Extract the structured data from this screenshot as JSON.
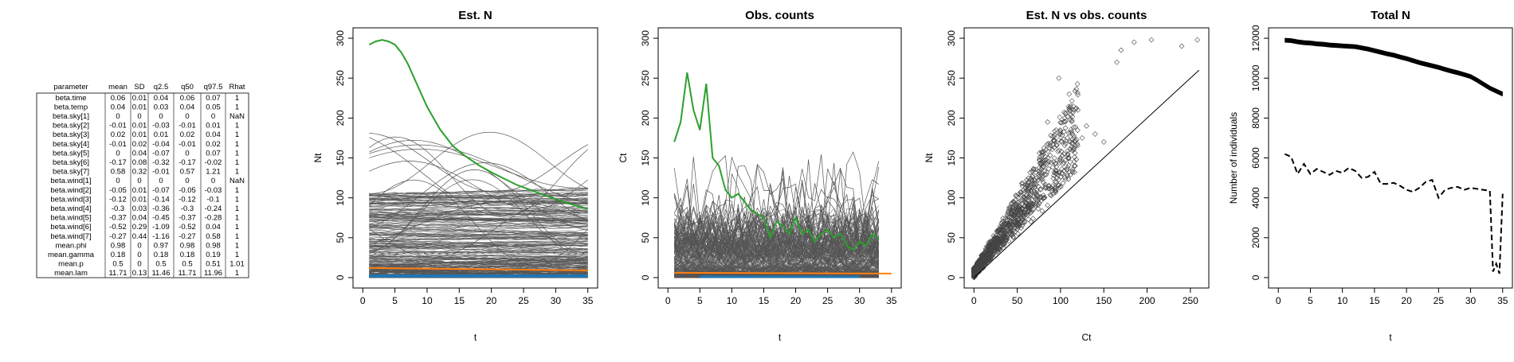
{
  "table": {
    "headers": [
      "parameter",
      "mean",
      "SD",
      "q2.5",
      "q50",
      "q97.5",
      "Rhat"
    ],
    "rows": [
      [
        "beta.time",
        "0.06",
        "0.01",
        "0.04",
        "0.06",
        "0.07",
        "1"
      ],
      [
        "beta.temp",
        "0.04",
        "0.01",
        "0.03",
        "0.04",
        "0.05",
        "1"
      ],
      [
        "beta.sky[1]",
        "0",
        "0",
        "0",
        "0",
        "0",
        "NaN"
      ],
      [
        "beta.sky[2]",
        "-0.01",
        "0.01",
        "-0.03",
        "-0.01",
        "0.01",
        "1"
      ],
      [
        "beta.sky[3]",
        "0.02",
        "0.01",
        "0.01",
        "0.02",
        "0.04",
        "1"
      ],
      [
        "beta.sky[4]",
        "-0.01",
        "0.02",
        "-0.04",
        "-0.01",
        "0.02",
        "1"
      ],
      [
        "beta.sky[5]",
        "0",
        "0.04",
        "-0.07",
        "0",
        "0.07",
        "1"
      ],
      [
        "beta.sky[6]",
        "-0.17",
        "0.08",
        "-0.32",
        "-0.17",
        "-0.02",
        "1"
      ],
      [
        "beta.sky[7]",
        "0.58",
        "0.32",
        "-0.01",
        "0.57",
        "1.21",
        "1"
      ],
      [
        "beta.wind[1]",
        "0",
        "0",
        "0",
        "0",
        "0",
        "NaN"
      ],
      [
        "beta.wind[2]",
        "-0.05",
        "0.01",
        "-0.07",
        "-0.05",
        "-0.03",
        "1"
      ],
      [
        "beta.wind[3]",
        "-0.12",
        "0.01",
        "-0.14",
        "-0.12",
        "-0.1",
        "1"
      ],
      [
        "beta.wind[4]",
        "-0.3",
        "0.03",
        "-0.36",
        "-0.3",
        "-0.24",
        "1"
      ],
      [
        "beta.wind[5]",
        "-0.37",
        "0.04",
        "-0.45",
        "-0.37",
        "-0.28",
        "1"
      ],
      [
        "beta.wind[6]",
        "-0.52",
        "0.29",
        "-1.09",
        "-0.52",
        "0.04",
        "1"
      ],
      [
        "beta.wind[7]",
        "-0.27",
        "0.44",
        "-1.16",
        "-0.27",
        "0.58",
        "1"
      ],
      [
        "mean.phi",
        "0.98",
        "0",
        "0.97",
        "0.98",
        "0.98",
        "1"
      ],
      [
        "mean.gamma",
        "0.18",
        "0",
        "0.18",
        "0.18",
        "0.19",
        "1"
      ],
      [
        "mean.p",
        "0.5",
        "0",
        "0.5",
        "0.5",
        "0.51",
        "1.01"
      ],
      [
        "mean.lam",
        "11.71",
        "0.13",
        "11.46",
        "11.71",
        "11.96",
        "1"
      ]
    ]
  },
  "chart_data": [
    {
      "type": "line",
      "title": "Est. N",
      "xlabel": "t",
      "ylabel": "Nt",
      "xlim": [
        0,
        35
      ],
      "ylim": [
        0,
        300
      ],
      "xticks": [
        "0",
        "5",
        "10",
        "15",
        "20",
        "25",
        "30",
        "35"
      ],
      "yticks": [
        "0",
        "50",
        "100",
        "150",
        "200",
        "250",
        "300"
      ],
      "note": "many grey site-level trajectories, bulk between 0 and ~60; highlighted site in green, overlays in orange and blue",
      "highlight_colors": {
        "grey": "#555555",
        "green": "#2ca02c",
        "orange": "#ff7f0e",
        "blue": "#1f77b4"
      },
      "highlight": {
        "x": [
          1,
          2,
          3,
          4,
          5,
          6,
          7,
          8,
          9,
          10,
          12,
          14,
          16,
          18,
          20,
          22,
          24,
          26,
          28,
          30,
          32,
          34,
          35
        ],
        "y": [
          292,
          296,
          298,
          296,
          292,
          282,
          268,
          250,
          232,
          214,
          186,
          165,
          152,
          141,
          132,
          124,
          116,
          110,
          104,
          98,
          93,
          88,
          86
        ]
      },
      "orange": {
        "x": [
          1,
          35
        ],
        "y": [
          12,
          9
        ]
      },
      "blue": {
        "x": [
          1,
          35
        ],
        "y": [
          2,
          2
        ]
      }
    },
    {
      "type": "line",
      "title": "Obs. counts",
      "xlabel": "t",
      "ylabel": "Ct",
      "xlim": [
        0,
        35
      ],
      "ylim": [
        0,
        300
      ],
      "xticks": [
        "0",
        "5",
        "10",
        "15",
        "20",
        "25",
        "30",
        "35"
      ],
      "yticks": [
        "0",
        "50",
        "100",
        "150",
        "200",
        "250",
        "300"
      ],
      "note": "many grey site-level count series, bulk between 0 and ~50; highlighted site in green, overlays in orange and blue",
      "highlight": {
        "x": [
          1,
          2,
          3,
          4,
          5,
          6,
          7,
          8,
          9,
          10,
          11,
          12,
          13,
          14,
          15,
          16,
          17,
          18,
          19,
          20,
          21,
          22,
          23,
          24,
          25,
          26,
          27,
          28,
          29,
          30,
          31,
          32,
          33
        ],
        "y": [
          170,
          195,
          257,
          210,
          185,
          243,
          150,
          140,
          110,
          100,
          105,
          95,
          85,
          80,
          75,
          50,
          70,
          65,
          55,
          75,
          55,
          60,
          45,
          55,
          60,
          50,
          55,
          40,
          35,
          45,
          40,
          55,
          48
        ]
      },
      "orange": {
        "x": [
          1,
          35
        ],
        "y": [
          6,
          5
        ]
      },
      "blue": {
        "x": [
          5,
          30
        ],
        "y": [
          1,
          1
        ]
      }
    },
    {
      "type": "scatter",
      "title": "Est. N vs obs. counts",
      "xlabel": "Ct",
      "ylabel": "Nt",
      "xlim": [
        0,
        260
      ],
      "ylim": [
        0,
        300
      ],
      "xticks": [
        "0",
        "50",
        "100",
        "150",
        "200",
        "250"
      ],
      "yticks": [
        "0",
        "50",
        "100",
        "150",
        "200",
        "250",
        "300"
      ],
      "note": "open diamond points, dense cloud near origin; 1:1 reference line",
      "points": [
        [
          165,
          270
        ],
        [
          170,
          285
        ],
        [
          185,
          295
        ],
        [
          205,
          298
        ],
        [
          240,
          290
        ],
        [
          258,
          298
        ],
        [
          98,
          250
        ],
        [
          110,
          230
        ],
        [
          120,
          210
        ],
        [
          105,
          200
        ],
        [
          130,
          190
        ],
        [
          140,
          180
        ],
        [
          150,
          170
        ],
        [
          125,
          175
        ],
        [
          95,
          185
        ],
        [
          85,
          195
        ],
        [
          115,
          160
        ],
        [
          100,
          150
        ]
      ],
      "reference_line": {
        "x": [
          0,
          260
        ],
        "y": [
          0,
          260
        ]
      }
    },
    {
      "type": "line",
      "title": "Total N",
      "xlabel": "t",
      "ylabel": "Number of individuals",
      "xlim": [
        0,
        35
      ],
      "ylim": [
        0,
        12000
      ],
      "xticks": [
        "0",
        "5",
        "10",
        "15",
        "20",
        "25",
        "30",
        "35"
      ],
      "yticks": [
        "0",
        "2000",
        "4000",
        "6000",
        "8000",
        "10000",
        "12000"
      ],
      "series": [
        {
          "style": "solid",
          "x": [
            1,
            2,
            3,
            4,
            5,
            6,
            7,
            8,
            9,
            10,
            11,
            12,
            13,
            14,
            15,
            16,
            17,
            18,
            19,
            20,
            21,
            22,
            23,
            24,
            25,
            26,
            27,
            28,
            29,
            30,
            31,
            32,
            33,
            34,
            35
          ],
          "y": [
            11900,
            11880,
            11820,
            11780,
            11760,
            11720,
            11700,
            11660,
            11640,
            11620,
            11600,
            11580,
            11520,
            11460,
            11380,
            11300,
            11220,
            11150,
            11060,
            10980,
            10880,
            10780,
            10700,
            10620,
            10540,
            10440,
            10350,
            10270,
            10180,
            10080,
            9900,
            9700,
            9500,
            9350,
            9200
          ]
        },
        {
          "style": "dashed",
          "x": [
            1,
            2,
            3,
            4,
            5,
            6,
            7,
            8,
            9,
            10,
            11,
            12,
            13,
            14,
            15,
            16,
            17,
            18,
            19,
            20,
            21,
            22,
            23,
            24,
            25,
            26,
            27,
            28,
            29,
            30,
            31,
            32,
            33,
            33.5,
            34,
            34.5,
            35
          ],
          "y": [
            6200,
            6050,
            5200,
            5700,
            5200,
            5450,
            5300,
            5150,
            5350,
            5250,
            5500,
            5350,
            5000,
            5050,
            5300,
            4700,
            4700,
            4750,
            4600,
            4400,
            4300,
            4500,
            4800,
            4900,
            4000,
            4400,
            4500,
            4550,
            4400,
            4500,
            4450,
            4400,
            4350,
            300,
            700,
            200,
            4200
          ]
        }
      ]
    }
  ]
}
